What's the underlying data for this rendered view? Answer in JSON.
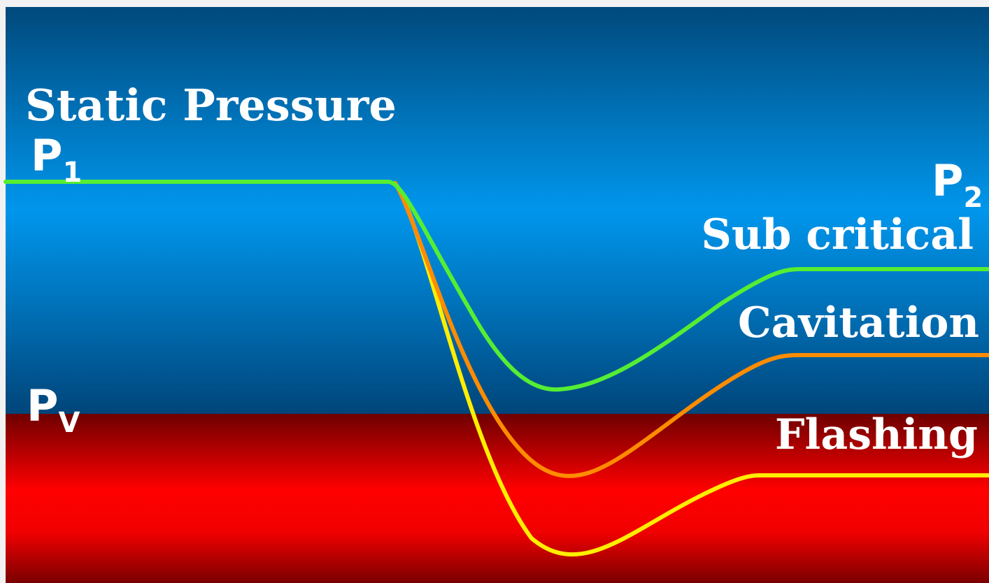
{
  "title": "Static Pressure",
  "labels": {
    "p1": {
      "main": "P",
      "sub": "1"
    },
    "p2": {
      "main": "P",
      "sub": "2"
    },
    "pv": {
      "main": "P",
      "sub": "V"
    }
  },
  "curves": [
    {
      "id": "sub-critical",
      "label": "Sub critical",
      "color": "#55ee33"
    },
    {
      "id": "cavitation",
      "label": "Cavitation",
      "color": "#ff8c00"
    },
    {
      "id": "flashing",
      "label": "Flashing",
      "color": "#ffee00"
    }
  ],
  "colors": {
    "frame": "#f2f2f2",
    "liquid_top": "#00497c",
    "liquid_mid": "#0096ec",
    "liquid_bottom": "#00457a",
    "vapor_top": "#6e0000",
    "vapor_mid": "#ff0000",
    "vapor_bottom": "#7a0000"
  }
}
